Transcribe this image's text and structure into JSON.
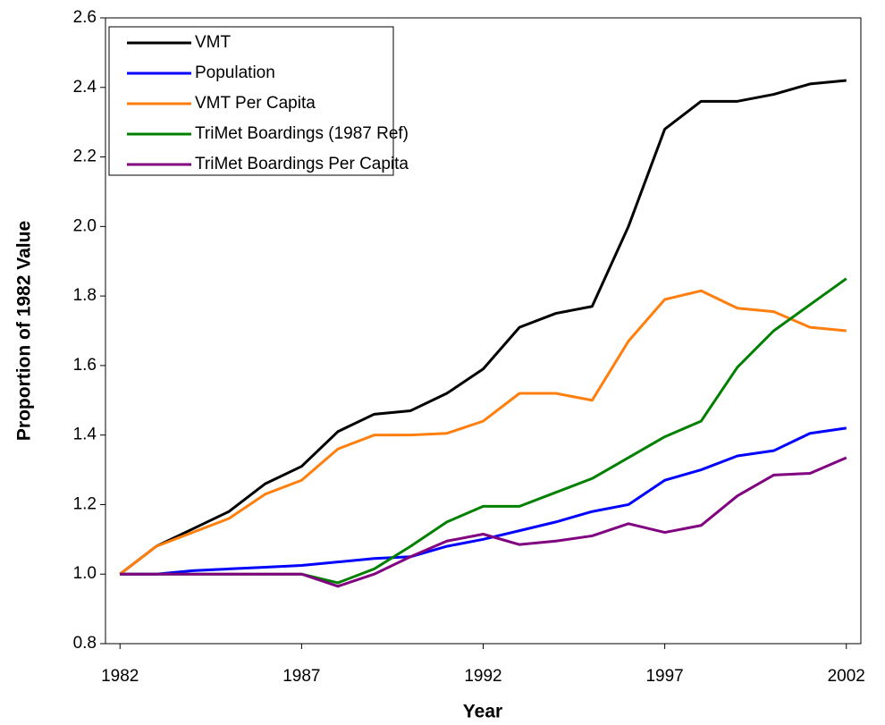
{
  "chart_data": {
    "type": "line",
    "x_label": "Year",
    "y_label": "Proportion of 1982 Value",
    "x": [
      1982,
      1983,
      1984,
      1985,
      1986,
      1987,
      1988,
      1989,
      1990,
      1991,
      1992,
      1993,
      1994,
      1995,
      1996,
      1997,
      1998,
      1999,
      2000,
      2001,
      2002
    ],
    "series": [
      {
        "name": "VMT",
        "color": "#000000",
        "values": [
          1.0,
          1.08,
          1.13,
          1.18,
          1.26,
          1.31,
          1.41,
          1.46,
          1.47,
          1.52,
          1.59,
          1.71,
          1.75,
          1.77,
          2.0,
          2.28,
          2.36,
          2.36,
          2.38,
          2.41,
          2.42
        ]
      },
      {
        "name": "Population",
        "color": "#0000ff",
        "values": [
          1.0,
          1.0,
          1.01,
          1.015,
          1.02,
          1.025,
          1.035,
          1.045,
          1.05,
          1.08,
          1.1,
          1.125,
          1.15,
          1.18,
          1.2,
          1.27,
          1.3,
          1.34,
          1.355,
          1.405,
          1.42
        ]
      },
      {
        "name": "VMT Per Capita",
        "color": "#ff7f0e",
        "values": [
          1.0,
          1.08,
          1.12,
          1.16,
          1.23,
          1.27,
          1.36,
          1.4,
          1.4,
          1.405,
          1.44,
          1.52,
          1.52,
          1.5,
          1.67,
          1.79,
          1.815,
          1.765,
          1.755,
          1.71,
          1.7
        ]
      },
      {
        "name": "TriMet Boardings (1987 Ref)",
        "color": "#008000",
        "values": [
          1.0,
          1.0,
          1.0,
          1.0,
          1.0,
          1.0,
          0.975,
          1.015,
          1.08,
          1.15,
          1.195,
          1.195,
          1.235,
          1.275,
          1.335,
          1.395,
          1.44,
          1.595,
          1.7,
          1.775,
          1.85
        ]
      },
      {
        "name": "TriMet Boardings Per Capita",
        "color": "#800080",
        "values": [
          1.0,
          1.0,
          1.0,
          1.0,
          1.0,
          1.0,
          0.965,
          1.0,
          1.05,
          1.095,
          1.115,
          1.085,
          1.095,
          1.11,
          1.145,
          1.12,
          1.14,
          1.225,
          1.285,
          1.29,
          1.335
        ]
      }
    ],
    "xlim": [
      1981.6,
      2002.4
    ],
    "xticks": [
      1982,
      1987,
      1992,
      1997,
      2002
    ],
    "ylim": [
      0.8,
      2.6
    ],
    "yticks": [
      {
        "value": 0.8,
        "label": "0.8"
      },
      {
        "value": 1.0,
        "label": "1.0"
      },
      {
        "value": 1.2,
        "label": "1.2"
      },
      {
        "value": 1.4,
        "label": "1.4"
      },
      {
        "value": 1.6,
        "label": "1.6"
      },
      {
        "value": 1.8,
        "label": "1.8"
      },
      {
        "value": 2.0,
        "label": "2.0"
      },
      {
        "value": 2.2,
        "label": "2.2"
      },
      {
        "value": 2.4,
        "label": "2.4"
      },
      {
        "value": 2.6,
        "label": "2.6"
      }
    ],
    "legend": "top-left",
    "grid": false
  }
}
